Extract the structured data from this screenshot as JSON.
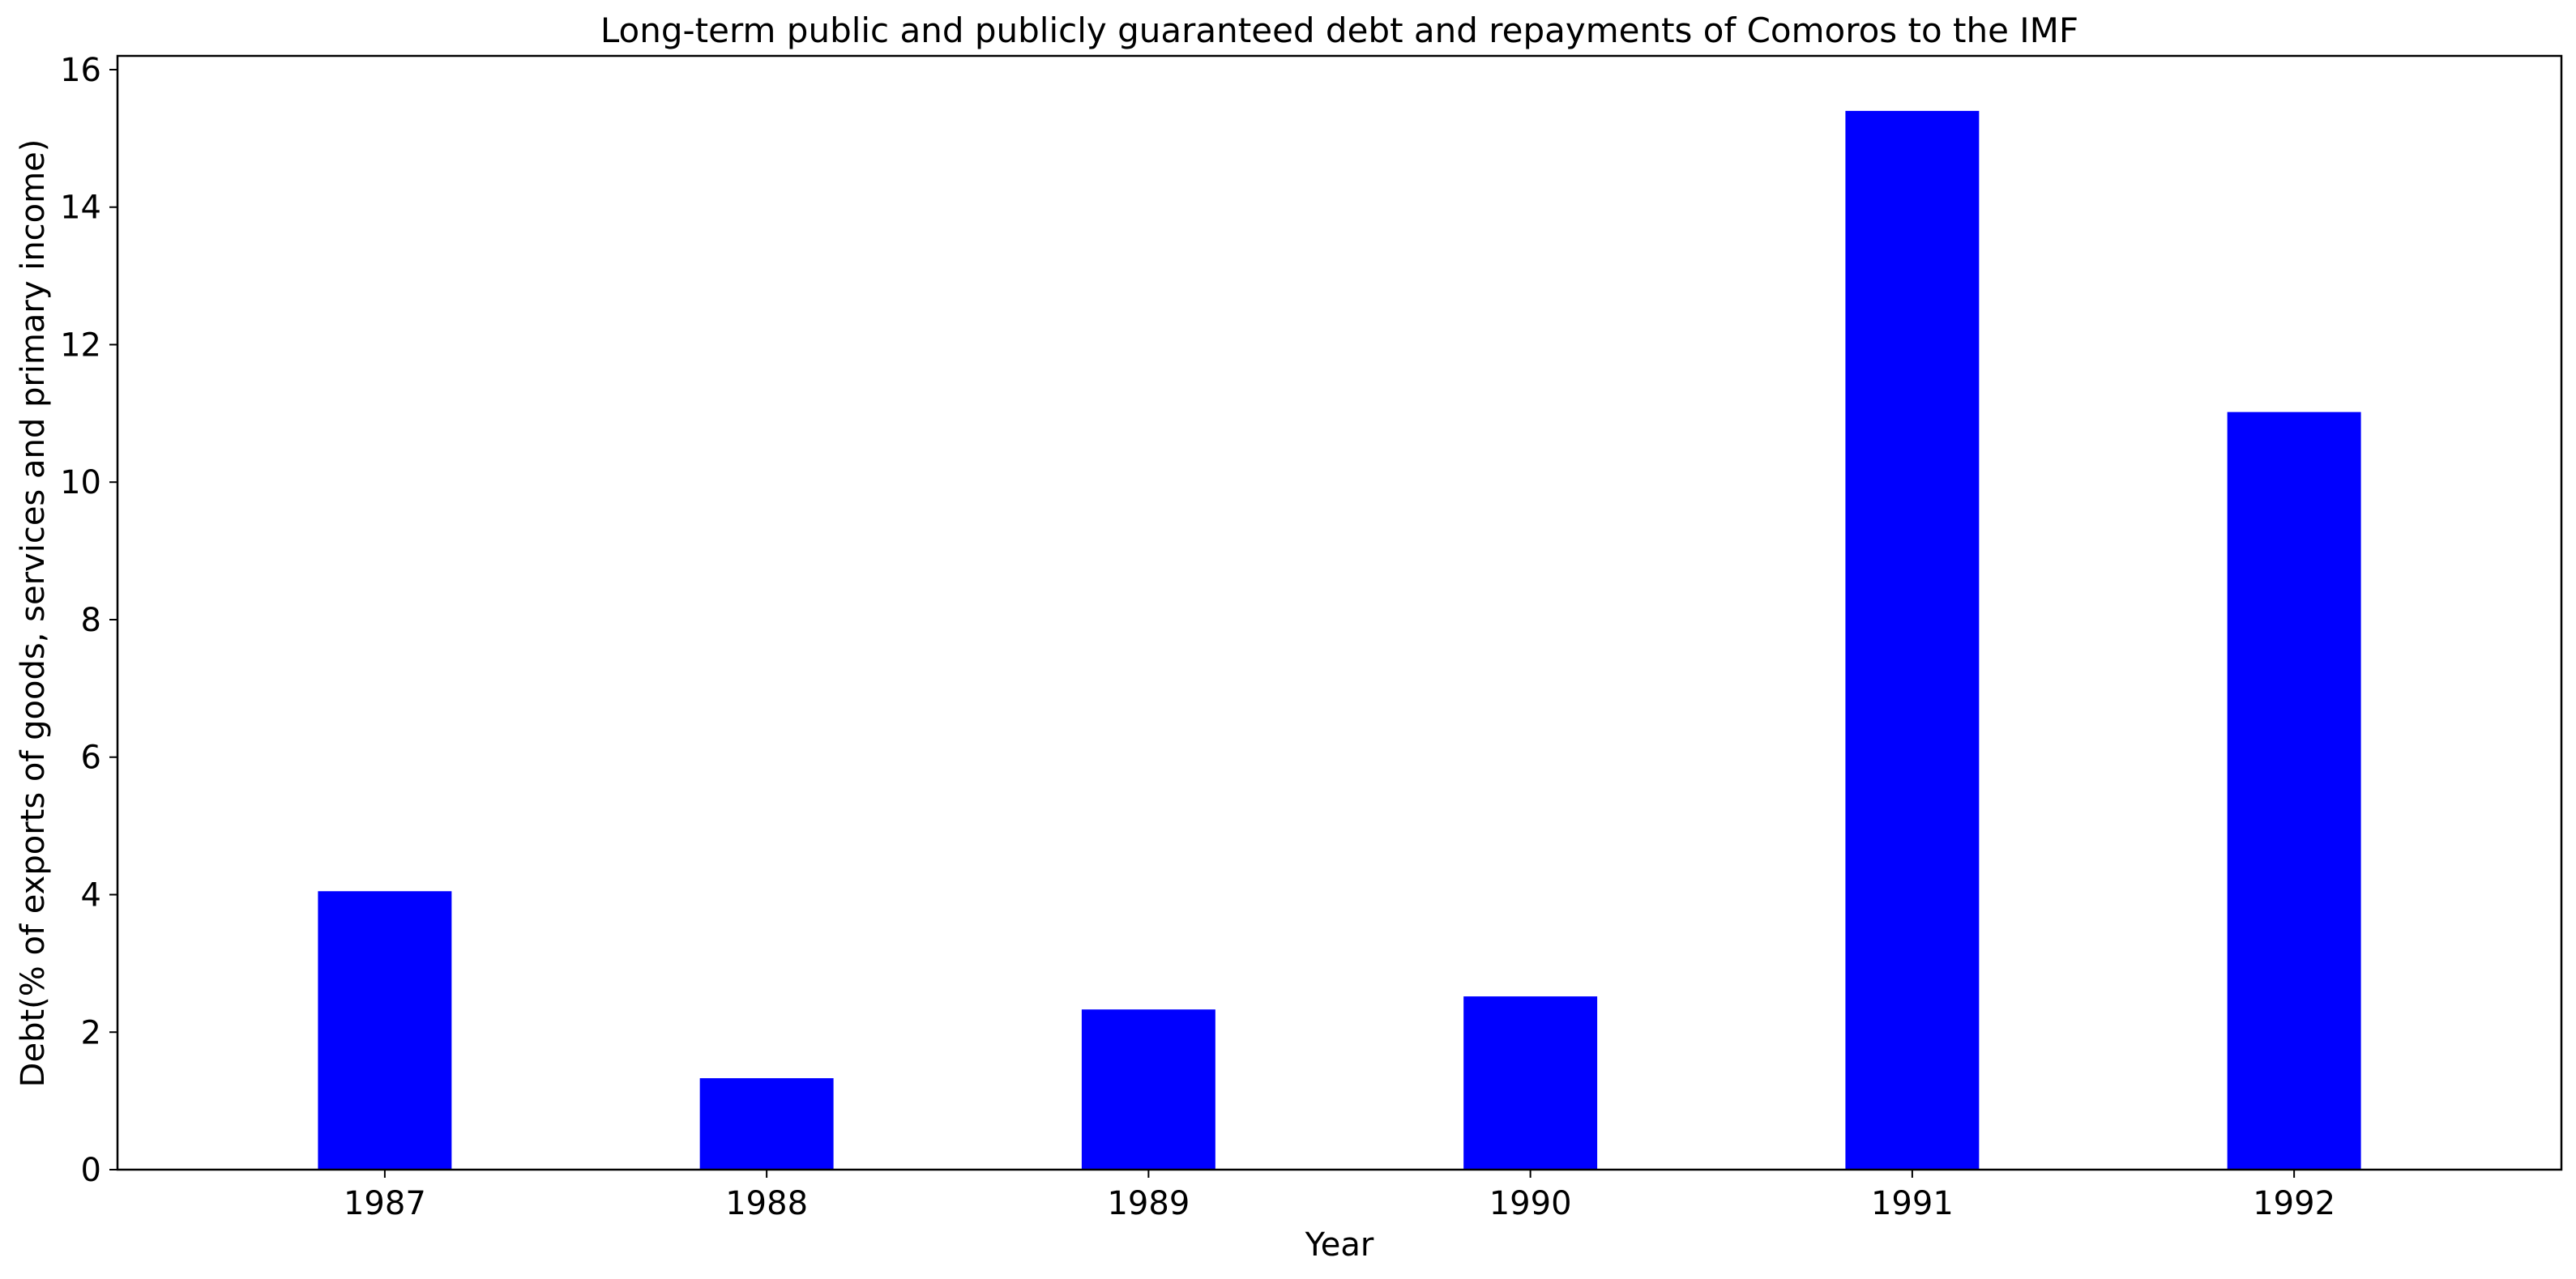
{
  "chart_data": {
    "type": "bar",
    "title": "Long-term public and publicly guaranteed debt and repayments of Comoros to the IMF",
    "xlabel": "Year",
    "ylabel": "Debt(% of exports of goods, services and primary income)",
    "categories": [
      "1987",
      "1988",
      "1989",
      "1990",
      "1991",
      "1992"
    ],
    "values": [
      4.05,
      1.33,
      2.33,
      2.52,
      15.4,
      11.02
    ],
    "ylim": [
      0,
      16.2
    ],
    "yticks": [
      0,
      2,
      4,
      6,
      8,
      10,
      12,
      14,
      16
    ],
    "bar_color": "#0000ff",
    "grid": false,
    "legend": "none"
  }
}
